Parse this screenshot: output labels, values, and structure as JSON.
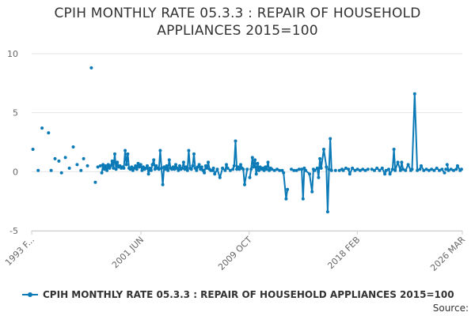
{
  "title_line1": "CPIH MONTHLY RATE 05.3.3 : REPAIR OF HOUSEHOLD",
  "title_line2": "APPLIANCES 2015=100",
  "legend_label": "CPIH MONTHLY RATE 05.3.3 : REPAIR OF HOUSEHOLD APPLIANCES 2015=100",
  "source_label": "Source:",
  "colors": {
    "series": "#0b7ab7",
    "grid": "#e6e6e6",
    "axis": "#cccccc"
  },
  "chart_data": {
    "type": "line",
    "title": "CPIH MONTHLY RATE 05.3.3 : REPAIR OF HOUSEHOLD APPLIANCES 2015=100",
    "xlabel": "",
    "ylabel": "",
    "ylim": [
      -5,
      10
    ],
    "yticks": [
      -5,
      0,
      5,
      10
    ],
    "xlim": [
      1993.0,
      2026.17
    ],
    "xticks": [
      {
        "x": 1993.0,
        "label": "1993 F..."
      },
      {
        "x": 2001.42,
        "label": "2001 JUN"
      },
      {
        "x": 2009.75,
        "label": "2009 OCT"
      },
      {
        "x": 2018.08,
        "label": "2018 FEB"
      },
      {
        "x": 2026.17,
        "label": "2026 MAR"
      }
    ],
    "grid": true,
    "legend": "bottom",
    "series": [
      {
        "name": "CPIH MONTHLY RATE 05.3.3 : REPAIR OF HOUSEHOLD APPLIANCES 2015=100",
        "points": [
          [
            1993.1,
            1.9
          ],
          [
            1993.5,
            0.1
          ],
          [
            1993.8,
            3.7
          ],
          [
            1994.3,
            3.3
          ],
          [
            1994.5,
            0.1
          ],
          [
            1994.8,
            1.1
          ],
          [
            1995.1,
            0.9
          ],
          [
            1995.3,
            -0.1
          ],
          [
            1995.6,
            1.2
          ],
          [
            1995.9,
            0.3
          ],
          [
            1996.2,
            2.1
          ],
          [
            1996.5,
            0.6
          ],
          [
            1996.8,
            0.1
          ],
          [
            1997.0,
            1.1
          ],
          [
            1997.3,
            0.5
          ],
          [
            1997.6,
            8.8
          ],
          [
            1997.9,
            -0.9
          ],
          [
            1998.1,
            0.4
          ],
          [
            1998.3,
            0.5
          ]
        ],
        "segments": [
          [
            [
              1998.4,
              -0.1
            ],
            [
              1998.5,
              0.6
            ],
            [
              1998.6,
              0.2
            ],
            [
              1998.7,
              0.5
            ],
            [
              1998.8,
              0.1
            ],
            [
              1998.9,
              0.6
            ],
            [
              1999.0,
              0.3
            ],
            [
              1999.1,
              0.5
            ],
            [
              1999.2,
              0.9
            ],
            [
              1999.3,
              0.3
            ],
            [
              1999.4,
              1.5
            ],
            [
              1999.5,
              0.2
            ],
            [
              1999.6,
              0.8
            ],
            [
              1999.7,
              0.4
            ],
            [
              1999.8,
              0.5
            ],
            [
              1999.9,
              0.3
            ],
            [
              2000.0,
              0.4
            ],
            [
              2000.1,
              0.3
            ],
            [
              2000.2,
              1.8
            ],
            [
              2000.3,
              0.6
            ],
            [
              2000.4,
              1.5
            ],
            [
              2000.5,
              0.3
            ],
            [
              2000.6,
              0.2
            ],
            [
              2000.7,
              0.4
            ],
            [
              2000.8,
              0.1
            ],
            [
              2000.9,
              0.3
            ],
            [
              2001.0,
              0.5
            ],
            [
              2001.1,
              0.2
            ],
            [
              2001.2,
              0.7
            ],
            [
              2001.3,
              0.4
            ],
            [
              2001.4,
              0.6
            ],
            [
              2001.5,
              0.1
            ],
            [
              2001.6,
              0.4
            ],
            [
              2001.7,
              0.2
            ],
            [
              2001.8,
              0.3
            ],
            [
              2001.9,
              0.5
            ],
            [
              2002.0,
              -0.2
            ],
            [
              2002.1,
              0.3
            ],
            [
              2002.2,
              0.1
            ],
            [
              2002.3,
              0.6
            ],
            [
              2002.4,
              1.0
            ],
            [
              2002.5,
              0.2
            ],
            [
              2002.6,
              0.5
            ],
            [
              2002.7,
              0.3
            ],
            [
              2002.8,
              0.2
            ],
            [
              2002.9,
              1.8
            ],
            [
              2003.0,
              0.3
            ],
            [
              2003.1,
              -1.1
            ],
            [
              2003.2,
              0.4
            ],
            [
              2003.3,
              0.2
            ],
            [
              2003.4,
              0.5
            ],
            [
              2003.5,
              0.1
            ],
            [
              2003.6,
              1.0
            ],
            [
              2003.7,
              0.3
            ],
            [
              2003.8,
              0.2
            ],
            [
              2003.9,
              0.4
            ],
            [
              2004.0,
              0.2
            ],
            [
              2004.1,
              0.6
            ],
            [
              2004.2,
              0.3
            ],
            [
              2004.3,
              0.1
            ],
            [
              2004.4,
              0.5
            ],
            [
              2004.5,
              0.2
            ],
            [
              2004.6,
              0.3
            ],
            [
              2004.7,
              0.8
            ],
            [
              2004.8,
              0.2
            ],
            [
              2004.9,
              0.4
            ],
            [
              2005.0,
              0.1
            ],
            [
              2005.1,
              1.8
            ],
            [
              2005.2,
              0.3
            ],
            [
              2005.3,
              0.2
            ],
            [
              2005.4,
              0.5
            ],
            [
              2005.5,
              1.5
            ],
            [
              2005.6,
              0.3
            ],
            [
              2005.7,
              0.1
            ],
            [
              2005.8,
              0.4
            ],
            [
              2005.9,
              0.6
            ],
            [
              2006.0,
              0.2
            ],
            [
              2006.1,
              0.4
            ],
            [
              2006.2,
              0.1
            ],
            [
              2006.3,
              -0.1
            ],
            [
              2006.4,
              0.5
            ],
            [
              2006.5,
              0.3
            ],
            [
              2006.6,
              0.8
            ],
            [
              2006.7,
              0.2
            ]
          ],
          [
            [
              2006.9,
              0.1
            ],
            [
              2007.0,
              0.3
            ],
            [
              2007.1,
              -0.2
            ],
            [
              2007.3,
              0.2
            ],
            [
              2007.5,
              -0.5
            ],
            [
              2007.7,
              0.3
            ],
            [
              2007.9,
              0.1
            ],
            [
              2008.0,
              0.6
            ],
            [
              2008.1,
              0.3
            ],
            [
              2008.3,
              0.1
            ],
            [
              2008.5,
              0.2
            ],
            [
              2008.6,
              0.5
            ],
            [
              2008.7,
              2.6
            ],
            [
              2008.8,
              0.2
            ],
            [
              2008.9,
              0.4
            ],
            [
              2009.0,
              0.2
            ],
            [
              2009.1,
              0.6
            ],
            [
              2009.2,
              0.3
            ],
            [
              2009.3,
              0.2
            ],
            [
              2009.4,
              -1.1
            ],
            [
              2009.6,
              0.2
            ]
          ],
          [
            [
              2009.8,
              -0.5
            ],
            [
              2009.9,
              0.2
            ],
            [
              2010.0,
              1.2
            ],
            [
              2010.1,
              0.4
            ],
            [
              2010.2,
              1.0
            ],
            [
              2010.3,
              -0.2
            ],
            [
              2010.4,
              0.7
            ],
            [
              2010.5,
              0.1
            ],
            [
              2010.6,
              0.4
            ],
            [
              2010.7,
              0.2
            ],
            [
              2010.8,
              0.3
            ],
            [
              2010.9,
              0.1
            ],
            [
              2011.0,
              0.4
            ],
            [
              2011.1,
              0.2
            ],
            [
              2011.2,
              0.8
            ],
            [
              2011.3,
              0.1
            ],
            [
              2011.4,
              0.3
            ],
            [
              2011.5,
              0.2
            ],
            [
              2011.7,
              0.1
            ]
          ],
          [
            [
              2012.3,
              0.1
            ],
            [
              2012.4,
              -0.1
            ],
            [
              2012.6,
              -2.3
            ],
            [
              2012.7,
              -1.5
            ]
          ],
          [
            [
              2013.2,
              0.1
            ],
            [
              2013.4,
              0.1
            ],
            [
              2013.6,
              0.2
            ],
            [
              2013.8,
              0.2
            ],
            [
              2013.9,
              -2.3
            ],
            [
              2014.0,
              0.3
            ],
            [
              2014.1,
              0.1
            ],
            [
              2014.4,
              -0.2
            ],
            [
              2014.6,
              -1.7
            ],
            [
              2014.7,
              0.2
            ],
            [
              2014.8,
              0.1
            ],
            [
              2015.0,
              0.3
            ],
            [
              2015.1,
              -0.5
            ],
            [
              2015.2,
              1.1
            ],
            [
              2015.3,
              0.3
            ],
            [
              2015.5,
              1.9
            ],
            [
              2015.7,
              0.4
            ],
            [
              2015.8,
              -3.4
            ],
            [
              2015.9,
              0.2
            ],
            [
              2016.0,
              2.8
            ],
            [
              2016.1,
              0.1
            ]
          ],
          [
            [
              2016.7,
              0.1
            ],
            [
              2016.9,
              0.2
            ],
            [
              2017.0,
              0.1
            ],
            [
              2017.2,
              0.3
            ],
            [
              2017.4,
              0.2
            ],
            [
              2017.5,
              -0.2
            ],
            [
              2017.7,
              0.3
            ],
            [
              2017.9,
              0.1
            ],
            [
              2018.1,
              0.2
            ],
            [
              2018.3,
              0.1
            ],
            [
              2018.5,
              0.2
            ],
            [
              2018.7,
              0.1
            ]
          ],
          [
            [
              2019.2,
              0.2
            ],
            [
              2019.4,
              0.1
            ],
            [
              2019.6,
              0.3
            ],
            [
              2019.8,
              0.1
            ],
            [
              2020.0,
              0.3
            ],
            [
              2020.2,
              -0.2
            ],
            [
              2020.3,
              0.1
            ],
            [
              2020.5,
              0.2
            ],
            [
              2020.6,
              -0.2
            ],
            [
              2020.8,
              0.2
            ],
            [
              2020.9,
              1.9
            ],
            [
              2021.0,
              0.1
            ],
            [
              2021.2,
              0.8
            ],
            [
              2021.4,
              0.1
            ],
            [
              2021.5,
              0.8
            ],
            [
              2021.6,
              0.2
            ],
            [
              2021.8,
              0.1
            ],
            [
              2022.0,
              0.6
            ],
            [
              2022.2,
              0.1
            ],
            [
              2022.3,
              0.2
            ],
            [
              2022.5,
              6.6
            ],
            [
              2022.7,
              0.1
            ],
            [
              2022.9,
              0.2
            ],
            [
              2023.0,
              0.5
            ],
            [
              2023.2,
              0.1
            ],
            [
              2023.4,
              0.2
            ],
            [
              2023.6,
              0.1
            ],
            [
              2023.8,
              0.2
            ],
            [
              2024.0,
              0.1
            ],
            [
              2024.2,
              0.3
            ],
            [
              2024.4,
              0.1
            ],
            [
              2024.6,
              0.2
            ],
            [
              2024.8,
              -0.1
            ]
          ],
          [
            [
              2025.0,
              0.6
            ],
            [
              2025.1,
              0.1
            ],
            [
              2025.3,
              0.2
            ],
            [
              2025.5,
              0.1
            ],
            [
              2025.7,
              0.2
            ],
            [
              2025.8,
              0.5
            ],
            [
              2026.0,
              0.1
            ],
            [
              2026.1,
              0.2
            ]
          ]
        ],
        "isolated": [
          [
            2006.8,
            0.1
          ],
          [
            2011.9,
            0.2
          ],
          [
            2012.1,
            0.1
          ],
          [
            2013.0,
            0.2
          ],
          [
            2016.4,
            0.1
          ],
          [
            2018.9,
            0.2
          ],
          [
            2024.9,
            0.2
          ]
        ]
      }
    ]
  }
}
